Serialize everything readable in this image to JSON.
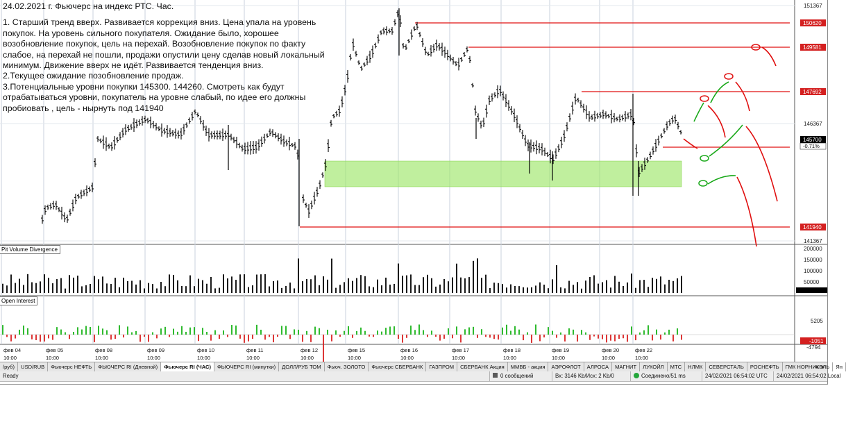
{
  "annotation": {
    "title": "24.02.2021 г. Фьючерс на индекс РТС. Час.",
    "lines": [
      "1. Старший тренд вверх. Развивается коррекция вниз. Цена упала на уровень покупок. На уровень сильного покупателя. Ожидание было, хорошее возобновление покупок, цель на перехай. Возобновление покупок по факту слабое, на перехай не пошли, продажи опустили цену сделав новый локальный минимум. Движение вверх не идёт. Развивается тенденция вниз.",
      "2.Текущее ожидание позобновление продаж.",
      "3.Потенциальные уровни покупки 145300. 144260. Смотреть как будут отрабатываться уровни, покупатель на уровне слабый, по идее его должны пробиовать , цель - нырнуть под 141940"
    ]
  },
  "price_axis": {
    "ticks": [
      "151367",
      "146367",
      "141367"
    ],
    "level_labels": [
      "150620",
      "149581",
      "147692",
      "141940"
    ],
    "current_price": "145700",
    "current_change": "-0.71%",
    "colors": {
      "level_box": "#d42020",
      "current_box": "#000000"
    }
  },
  "volume_panel": {
    "label": "Pit Volume Divergence",
    "ticks": [
      "200000",
      "150000",
      "100000",
      "50000"
    ]
  },
  "oi_panel": {
    "label": "Open Interest",
    "ticks": [
      "5205",
      "-4794"
    ],
    "current_value": "-1051"
  },
  "time_axis": {
    "dates": [
      {
        "d": "фев 04",
        "t": "10:00"
      },
      {
        "d": "фев 05",
        "t": "10:00"
      },
      {
        "d": "фев 08",
        "t": "10:00"
      },
      {
        "d": "фев 09",
        "t": "10:00"
      },
      {
        "d": "фев 10",
        "t": "10:00"
      },
      {
        "d": "фев 11",
        "t": "10:00"
      },
      {
        "d": "фев 12",
        "t": "10:00"
      },
      {
        "d": "фев 15",
        "t": "10:00"
      },
      {
        "d": "фев 16",
        "t": "10:00"
      },
      {
        "d": "фев 17",
        "t": "10:00"
      },
      {
        "d": "фев 18",
        "t": "10:00"
      },
      {
        "d": "фев 19",
        "t": "10:00"
      },
      {
        "d": "фев 20",
        "t": "10:00"
      },
      {
        "d": "фев 22",
        "t": "10:00"
      }
    ]
  },
  "tabs": {
    "items": [
      "/руб)",
      "USD/RUB",
      "Фьючерс НЕФТЬ",
      "ФЬЮЧЕРС  RI (Дневной)",
      "Фьючерс RI (ЧАС)",
      "ФЬЮЧЕРС RI (минутки)",
      "ДОЛЛ/РУБ ТОМ",
      "Фьюч. ЗОЛОТО",
      "Фьючерс СБЕРБАНК",
      "ГАЗПРОМ",
      "СБЕРБАНК Акция",
      "ММВБ - акция",
      "АЭРОФЛОТ",
      "АЛРОСА",
      "МАГНИТ",
      "ЛУКОЙЛ",
      "МТС",
      "НЛМК",
      "СЕВЕРСТАЛЬ",
      "РОСНЕФТЬ",
      "ГМК НОРНИКЕЛЬ",
      "Ян"
    ],
    "active": "Фьючерс RI (ЧАС)"
  },
  "status": {
    "ready": "Ready",
    "messages": "0 сообщений",
    "traffic": "Вх: 3146 Kb/Исх: 2 Kb/0",
    "connection": "Соединено/51 ms",
    "server_time": "24/02/2021 06:54:02 UTC",
    "local_time": "24/02/2021 06:54:02 Local"
  },
  "colors": {
    "level_line": "#e01010",
    "buy_zone": "#9ee66a",
    "arrow_red": "#e01010",
    "arrow_green": "#18a818",
    "oi_up": "#17b317",
    "oi_down": "#d82020"
  }
}
